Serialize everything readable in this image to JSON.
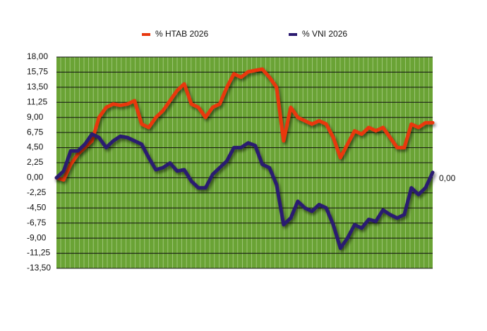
{
  "chart_data": {
    "type": "line",
    "series": [
      {
        "name": "% HTAB 2026",
        "color": "#e8380f",
        "values": [
          0,
          -0.3,
          2,
          3.5,
          4.5,
          5.5,
          9,
          10.5,
          11,
          10.8,
          11,
          11.5,
          8,
          7.5,
          9,
          10,
          11.5,
          13,
          14,
          11,
          10.5,
          9,
          10.5,
          11,
          13.5,
          15.5,
          15,
          15.8,
          16,
          16.2,
          15,
          13.5,
          5.5,
          10.5,
          9,
          8.5,
          8,
          8.5,
          8,
          6,
          3,
          5,
          7,
          6.5,
          7.5,
          7,
          7.5,
          6,
          4.5,
          4.5,
          8,
          7.5,
          8.2,
          8.2
        ]
      },
      {
        "name": "% VNI 2026",
        "color": "#2b1a70",
        "values": [
          0,
          1,
          4,
          4,
          5,
          6.5,
          6,
          4.5,
          5.5,
          6.2,
          6,
          5.5,
          5,
          3,
          1.2,
          1.5,
          2.2,
          1,
          1.2,
          -0.5,
          -1.5,
          -1.5,
          0.5,
          1.5,
          2.5,
          4.5,
          4.5,
          5.2,
          4.8,
          2,
          1.5,
          -1,
          -7,
          -6,
          -3.5,
          -4.5,
          -5,
          -4,
          -4.5,
          -7,
          -10.5,
          -9,
          -7,
          -7.5,
          -6.2,
          -6.5,
          -4.8,
          -5.5,
          -6,
          -5.5,
          -1.5,
          -2.5,
          -1.5,
          0.8
        ]
      }
    ],
    "ylim": [
      -13.5,
      18
    ],
    "yticks": [
      {
        "value": 18,
        "label": "18,00"
      },
      {
        "value": 15.75,
        "label": "15,75"
      },
      {
        "value": 13.5,
        "label": "13,50"
      },
      {
        "value": 11.25,
        "label": "11,25"
      },
      {
        "value": 9,
        "label": "9,00"
      },
      {
        "value": 6.75,
        "label": "6,75"
      },
      {
        "value": 4.5,
        "label": "4,50"
      },
      {
        "value": 2.25,
        "label": "2,25"
      },
      {
        "value": 0,
        "label": "0,00"
      },
      {
        "value": -2.25,
        "label": "-2,25"
      },
      {
        "value": -4.5,
        "label": "-4,50"
      },
      {
        "value": -6.75,
        "label": "-6,75"
      },
      {
        "value": -9,
        "label": "-9,00"
      },
      {
        "value": -11.25,
        "label": "-11,25"
      },
      {
        "value": -13.5,
        "label": "-13,50"
      }
    ],
    "annotation": "0,00",
    "grid": true,
    "background": "#6aa335"
  }
}
